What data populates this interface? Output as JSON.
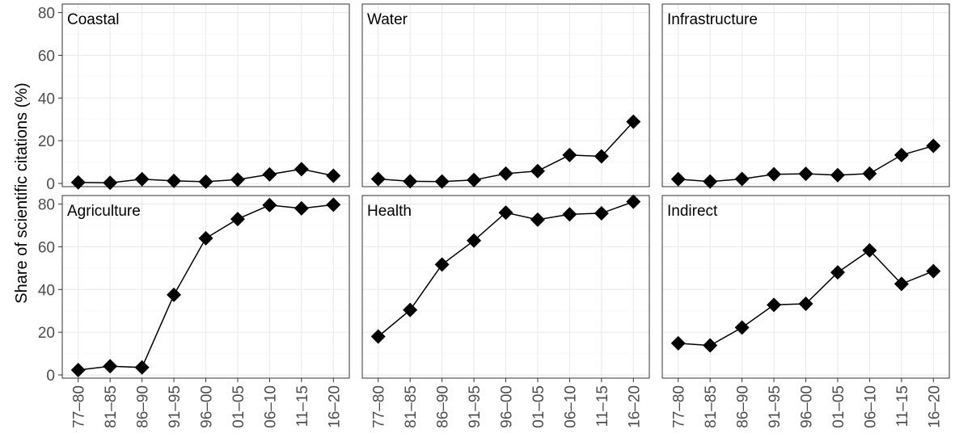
{
  "chart_data": {
    "type": "line",
    "ylabel": "Share of scientific citations (%)",
    "xlabel": "",
    "categories": [
      "77–80",
      "81–85",
      "86–90",
      "91–95",
      "96–00",
      "01–05",
      "06–10",
      "11–15",
      "16–20"
    ],
    "yticks": [
      0,
      20,
      40,
      60,
      80
    ],
    "ylim": [
      -1.5,
      84
    ],
    "grid": true,
    "marker": "diamond",
    "panels": [
      {
        "title": "Coastal",
        "values": [
          0.5,
          0.3,
          2.0,
          1.2,
          0.8,
          1.8,
          4.2,
          6.7,
          3.6
        ]
      },
      {
        "title": "Water",
        "values": [
          2.1,
          1.0,
          0.9,
          1.6,
          4.6,
          5.8,
          13.3,
          12.7,
          28.9
        ]
      },
      {
        "title": "Infrastructure",
        "values": [
          2.0,
          0.9,
          2.1,
          4.3,
          4.5,
          3.9,
          4.6,
          13.3,
          17.6
        ]
      },
      {
        "title": "Agriculture",
        "values": [
          2.3,
          4.1,
          3.5,
          37.5,
          64.0,
          73.0,
          79.5,
          78.0,
          79.7
        ]
      },
      {
        "title": "Health",
        "values": [
          18.0,
          30.4,
          51.7,
          62.9,
          76.0,
          72.7,
          75.2,
          75.7,
          81.1
        ]
      },
      {
        "title": "Indirect",
        "values": [
          14.8,
          13.8,
          22.2,
          32.8,
          33.3,
          48.0,
          58.3,
          42.6,
          48.6
        ]
      }
    ]
  }
}
